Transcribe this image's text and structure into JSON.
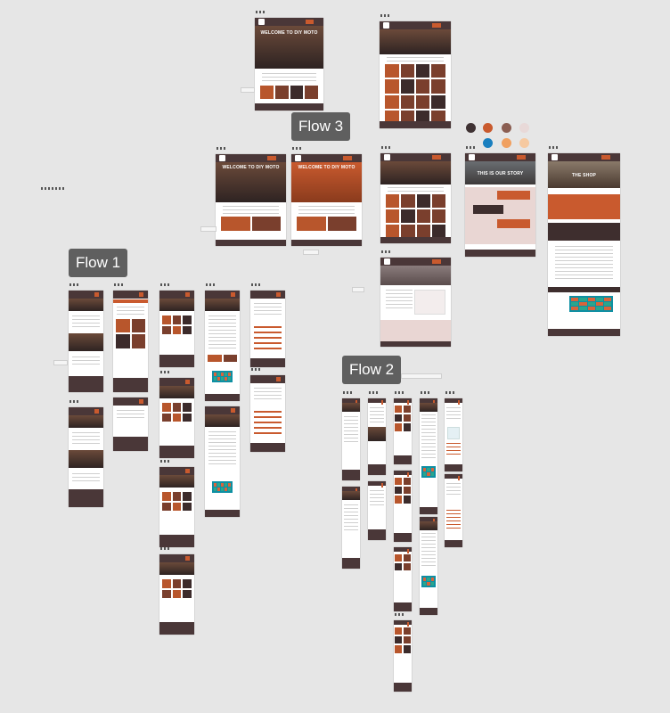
{
  "flows": [
    {
      "label": "Flow 3"
    },
    {
      "label": "Flow 1"
    },
    {
      "label": "Flow 2"
    }
  ],
  "artboard_titles": {
    "welcome": "WELCOME TO DIY MOTO",
    "our_story": "THIS IS OUR STORY",
    "the_shop": "THE SHOP"
  },
  "palette": {
    "colors": [
      "#3f3233",
      "#c95a2e",
      "#8b5e52",
      "#e8d9d8",
      "#1a7fbf",
      "#f0a060",
      "#f6c9a0"
    ]
  },
  "theme": {
    "canvas": "#e6e6e6",
    "nav": "#4a3738",
    "accent": "#c95a2e"
  }
}
